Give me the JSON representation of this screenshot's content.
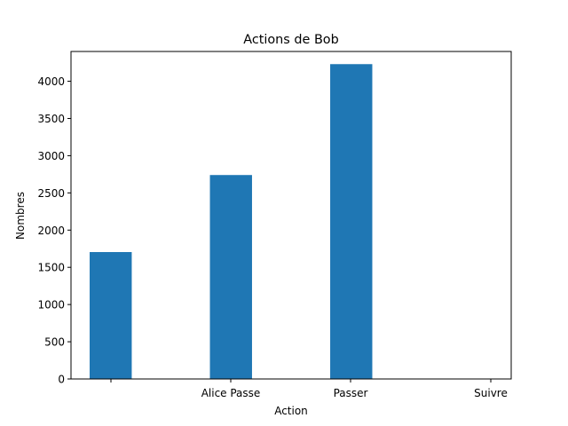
{
  "chart_data": {
    "type": "bar",
    "title": "Actions de Bob",
    "xlabel": "Action",
    "ylabel": "Nombres",
    "categories": [
      "",
      "Alice Passe",
      "Passer",
      "Suivre"
    ],
    "values": [
      1705,
      2740,
      4230,
      0
    ],
    "ylim": [
      0,
      4400
    ],
    "yticks": [
      0,
      500,
      1000,
      1500,
      2000,
      2500,
      3000,
      3500,
      4000
    ],
    "grid": false,
    "legend": "none",
    "bar_color": "#1f77b4"
  }
}
